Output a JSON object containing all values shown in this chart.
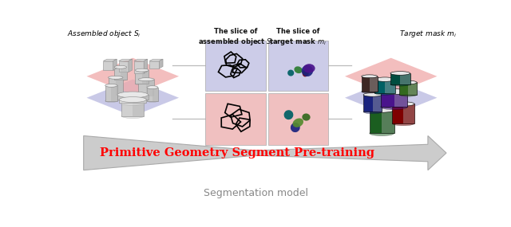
{
  "title": "Primitive Geometry Segment Pre-training",
  "subtitle": "Segmentation model",
  "label_assembled": "Assembled object $S_i$",
  "label_slice_assembled": "The slice of\nassembled object $S_i$",
  "label_slice_target": "The slice of\ntarget mask $m_i$",
  "label_target": "Target mask $m_i$",
  "bg_color": "#ffffff",
  "title_color": "#ff0000",
  "subtitle_color": "#888888",
  "label_color": "#111111",
  "box_top_bg": "#cccce8",
  "box_bot_bg": "#f0c0c0",
  "left_diamond_top": "#b8b8e0",
  "left_diamond_bot": "#f0a8a8",
  "right_diamond_top": "#b8b8e0",
  "right_diamond_bot": "#f0a8a8",
  "arrow_body_color": "#cccccc",
  "arrow_edge_color": "#aaaaaa",
  "connector_color": "#bbbbbb"
}
